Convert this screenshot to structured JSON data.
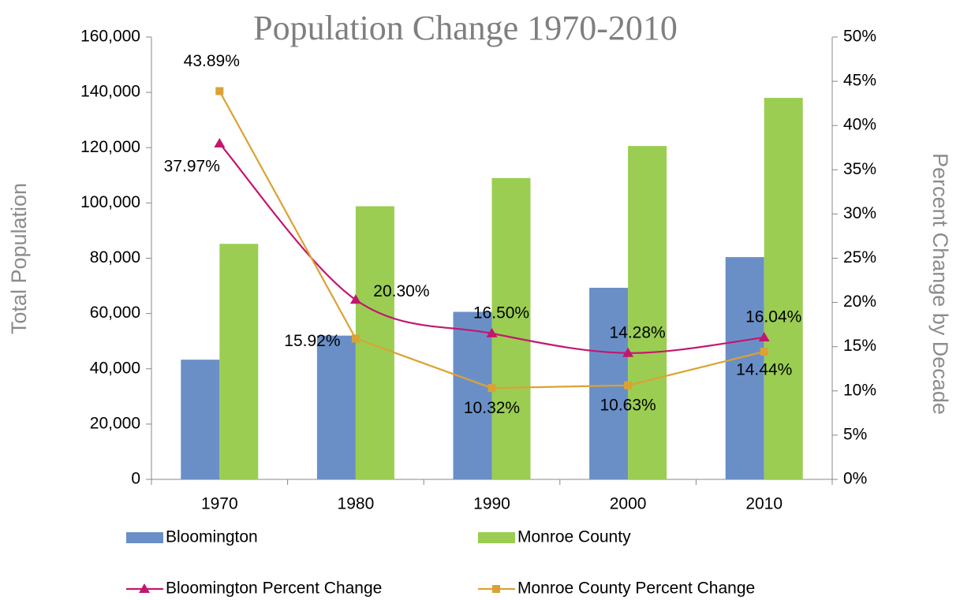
{
  "chart_data": {
    "type": "bar",
    "title": "Population Change 1970-2010",
    "y_label": "Total Population",
    "y2_label": "Percent Change by Decade",
    "categories": [
      "1970",
      "1980",
      "1990",
      "2000",
      "2010"
    ],
    "series": [
      {
        "name": "Bloomington",
        "type": "bar",
        "color": "#6a8fc7",
        "values": [
          43300,
          52000,
          60600,
          69300,
          80400
        ]
      },
      {
        "name": "Monroe County",
        "type": "bar",
        "color": "#9acd52",
        "values": [
          85200,
          98800,
          109000,
          120600,
          138000
        ]
      },
      {
        "name": "Bloomington Percent Change",
        "type": "line",
        "marker": "triangle",
        "axis": "y2",
        "color": "#c2176f",
        "values": [
          37.97,
          20.3,
          16.5,
          14.28,
          16.04
        ],
        "value_labels": [
          "37.97%",
          "20.30%",
          "16.50%",
          "14.28%",
          "16.04%"
        ]
      },
      {
        "name": "Monroe County Percent Change",
        "type": "line",
        "marker": "square",
        "axis": "y2",
        "color": "#dba233",
        "values": [
          43.89,
          15.92,
          10.32,
          10.63,
          14.44
        ],
        "value_labels": [
          "43.89%",
          "15.92%",
          "10.32%",
          "10.63%",
          "14.44%"
        ]
      }
    ],
    "ylim": [
      0,
      160000
    ],
    "yticks": [
      0,
      {
        "value": 20000,
        "label": "20,000"
      },
      {
        "value": 40000,
        "label": "40,000"
      },
      {
        "value": 60000,
        "label": "60,000"
      },
      {
        "value": 80000,
        "label": "80,000"
      },
      {
        "value": 100000,
        "label": "100,000"
      },
      {
        "value": 120000,
        "label": "120,000"
      },
      {
        "value": 140000,
        "label": "140,000"
      },
      {
        "value": 160000,
        "label": "160,000"
      }
    ],
    "y2lim": [
      0,
      50
    ],
    "y2ticks": [
      {
        "value": 0,
        "label": "0%"
      },
      {
        "value": 5,
        "label": "5%"
      },
      {
        "value": 10,
        "label": "10%"
      },
      {
        "value": 15,
        "label": "15%"
      },
      {
        "value": 20,
        "label": "20%"
      },
      {
        "value": 25,
        "label": "25%"
      },
      {
        "value": 30,
        "label": "30%"
      },
      {
        "value": 35,
        "label": "35%"
      },
      {
        "value": 40,
        "label": "40%"
      },
      {
        "value": 45,
        "label": "45%"
      },
      {
        "value": 50,
        "label": "50%"
      }
    ],
    "grid": false,
    "legend": "bottom"
  }
}
